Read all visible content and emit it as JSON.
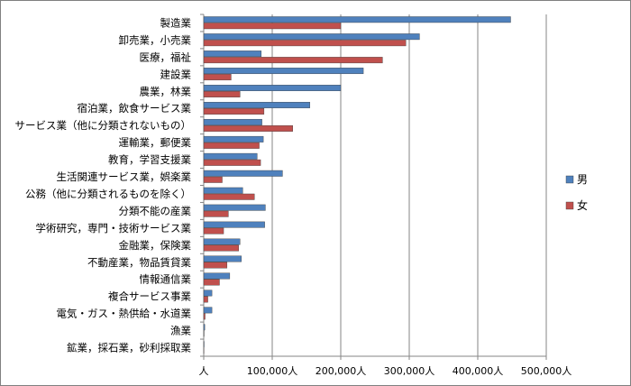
{
  "chart_data": {
    "type": "bar",
    "orientation": "horizontal",
    "categories": [
      "製造業",
      "卸売業，小売業",
      "医療，福祉",
      "建設業",
      "農業，林業",
      "宿泊業，飲食サービス業",
      "サービス業（他に分類されないもの）",
      "運輸業，郵便業",
      "教育，学習支援業",
      "生活関連サービス業，娯楽業",
      "公務（他に分類されるものを除く）",
      "分類不能の産業",
      "学術研究，専門・技術サービス業",
      "金融業，保険業",
      "不動産業，物品賃貸業",
      "情報通信業",
      "複合サービス事業",
      "電気・ガス・熱供給・水道業",
      "漁業",
      "鉱業，採石業，砂利採取業"
    ],
    "series": [
      {
        "name": "男",
        "color": "#4F81BD",
        "values": [
          448000,
          315000,
          84000,
          233000,
          200000,
          155000,
          85000,
          87000,
          78000,
          115000,
          57000,
          90000,
          89000,
          53000,
          55000,
          38000,
          12000,
          12000,
          1500,
          600
        ]
      },
      {
        "name": "女",
        "color": "#C0504D",
        "values": [
          200000,
          295000,
          261000,
          40000,
          53000,
          88000,
          130000,
          81000,
          83000,
          27000,
          74000,
          36000,
          29000,
          51000,
          34000,
          23000,
          6000,
          2000,
          500,
          200
        ]
      }
    ],
    "xlim": [
      0,
      500000
    ],
    "xticks": [
      "人",
      "100,000人",
      "200,000人",
      "300,000人",
      "400,000人",
      "500,000人"
    ],
    "grid": true,
    "legend_position": "right"
  }
}
